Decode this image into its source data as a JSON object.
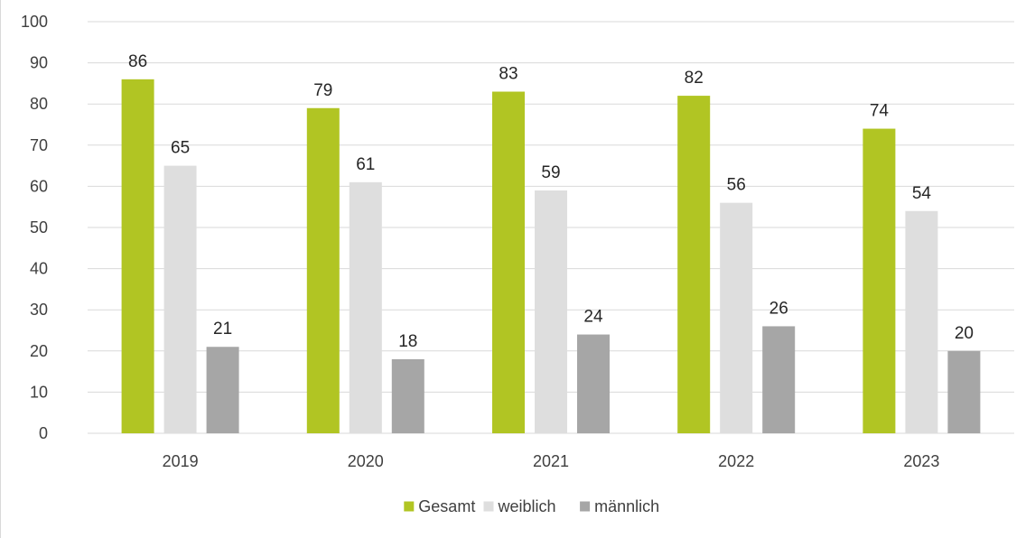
{
  "chart_data": {
    "type": "bar",
    "categories": [
      "2019",
      "2020",
      "2021",
      "2022",
      "2023"
    ],
    "series": [
      {
        "name": "Gesamt",
        "values": [
          86,
          79,
          83,
          82,
          74
        ],
        "color": "#b1c523"
      },
      {
        "name": "weiblich",
        "values": [
          65,
          61,
          59,
          56,
          54
        ],
        "color": "#dedede"
      },
      {
        "name": "männlich",
        "values": [
          21,
          18,
          24,
          26,
          20
        ],
        "color": "#a6a6a6"
      }
    ],
    "title": "",
    "xlabel": "",
    "ylabel": "",
    "ylim": [
      0,
      100
    ],
    "yticks": [
      "0",
      "10",
      "20",
      "30",
      "40",
      "50",
      "60",
      "70",
      "80",
      "90",
      "100"
    ],
    "grid": true,
    "gridline_color": "#d9d9d9",
    "legend_position": "bottom",
    "data_labels": true
  }
}
